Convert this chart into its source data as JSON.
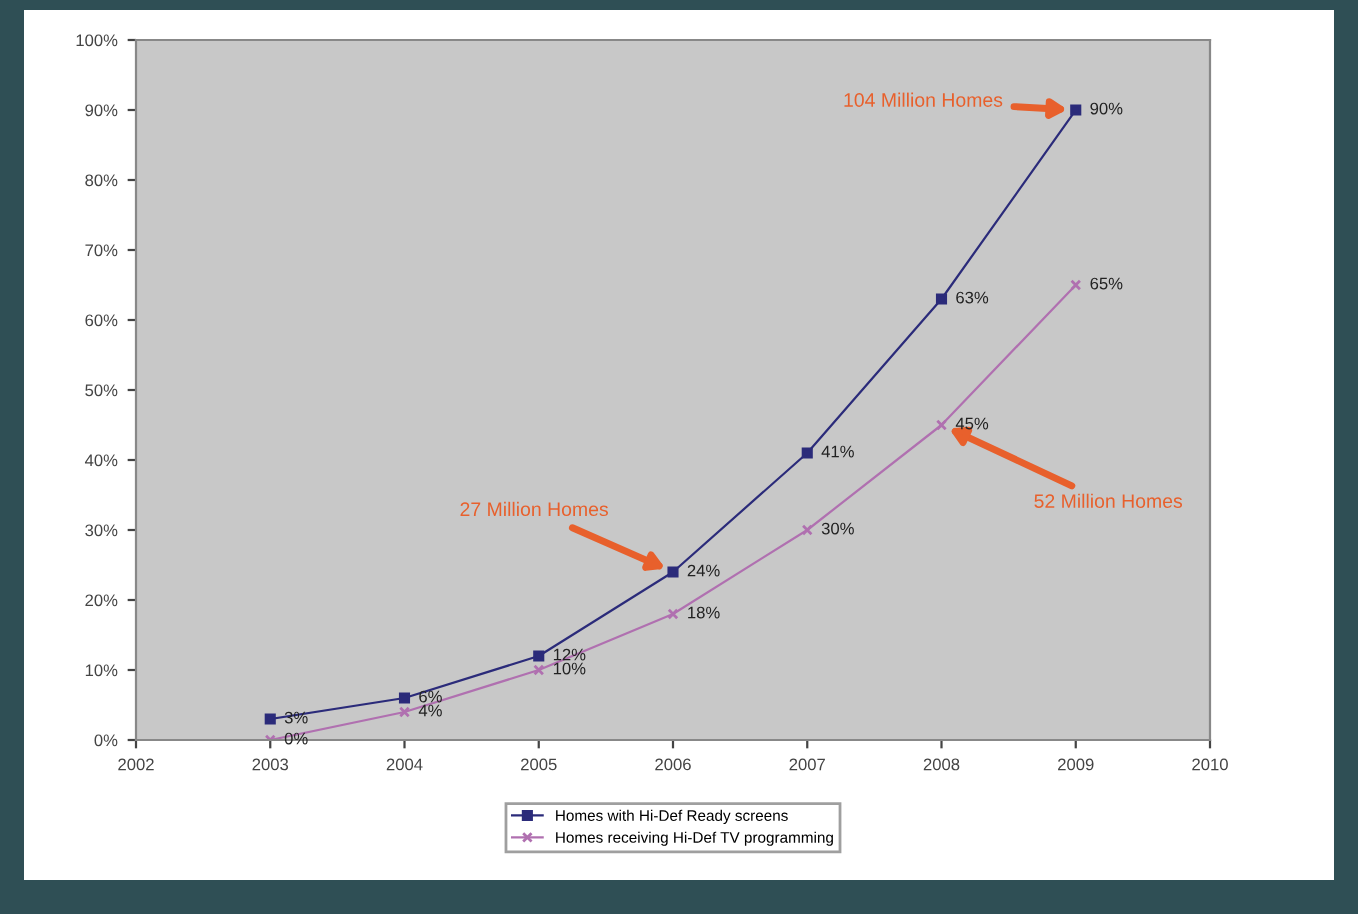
{
  "chart_data": {
    "type": "line",
    "x": [
      2003,
      2004,
      2005,
      2006,
      2007,
      2008,
      2009
    ],
    "series": [
      {
        "name": "Homes with Hi-Def Ready screens",
        "color": "#2b2b7a",
        "marker": "square",
        "values": [
          3,
          6,
          12,
          24,
          41,
          63,
          90
        ],
        "value_labels": [
          "3%",
          "6%",
          "12%",
          "24%",
          "41%",
          "63%",
          "90%"
        ]
      },
      {
        "name": "Homes receiving Hi-Def TV programming",
        "color": "#b070b0",
        "marker": "cross",
        "values": [
          0,
          4,
          10,
          18,
          30,
          45,
          65
        ],
        "value_labels": [
          "0%",
          "4%",
          "10%",
          "18%",
          "30%",
          "45%",
          "65%"
        ]
      }
    ],
    "xlim": [
      2002,
      2010
    ],
    "xticks": [
      2002,
      2003,
      2004,
      2005,
      2006,
      2007,
      2008,
      2009,
      2010
    ],
    "ylim": [
      0,
      100
    ],
    "yticks": [
      {
        "value": 0,
        "label": "0%"
      },
      {
        "value": 10,
        "label": "10%"
      },
      {
        "value": 20,
        "label": "20%"
      },
      {
        "value": 30,
        "label": "30%"
      },
      {
        "value": 40,
        "label": "40%"
      },
      {
        "value": 50,
        "label": "50%"
      },
      {
        "value": 60,
        "label": "60%"
      },
      {
        "value": 70,
        "label": "70%"
      },
      {
        "value": 80,
        "label": "80%"
      },
      {
        "value": 90,
        "label": "90%"
      },
      {
        "value": 100,
        "label": "100%"
      }
    ],
    "annotations": [
      {
        "text": "27 Million Homes",
        "x": 2006,
        "y": 24
      },
      {
        "text": "104 Million Homes",
        "x": 2009,
        "y": 90
      },
      {
        "text": "52 Million Homes",
        "x": 2008,
        "y": 45
      }
    ],
    "legend": "bottom",
    "grid": false,
    "line_style": "solid"
  }
}
